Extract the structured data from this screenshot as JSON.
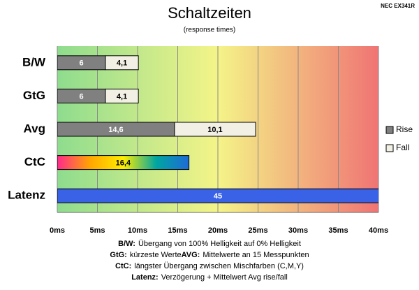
{
  "chart_data": {
    "type": "bar",
    "orientation": "horizontal",
    "stacked": true,
    "title": "Schaltzeiten",
    "subtitle": "(response times)",
    "corner_label": "NEC EX341R",
    "categories": [
      "B/W",
      "GtG",
      "Avg",
      "CtC",
      "Latenz"
    ],
    "series": [
      {
        "name": "Rise",
        "color": "#808080",
        "label_color": "#ffffff",
        "values": [
          6,
          6,
          14.6,
          null,
          null
        ],
        "value_labels": [
          "6",
          "6",
          "14,6",
          null,
          null
        ]
      },
      {
        "name": "Fall",
        "color": "#f2f0e4",
        "label_color": "#000000",
        "values": [
          4.1,
          4.1,
          10.1,
          null,
          null
        ],
        "value_labels": [
          "4,1",
          "4,1",
          "10,1",
          null,
          null
        ]
      }
    ],
    "extra_series": [
      {
        "gradient": [
          "#ff2a8c",
          "#ffa500",
          "#ffee00",
          "#00a6a0",
          "#1e6ad8"
        ],
        "label_color": "#000000",
        "values": [
          null,
          null,
          null,
          16.4,
          null
        ],
        "value_labels": [
          null,
          null,
          null,
          "16,4",
          null
        ]
      },
      {
        "color": "#3a62e6",
        "label_color": "#ffffff",
        "values": [
          null,
          null,
          null,
          null,
          45
        ]
      }
    ],
    "xlim": [
      0,
      40
    ],
    "xticks": [
      {
        "value": 0,
        "label": "0ms"
      },
      {
        "value": 5,
        "label": "5ms"
      },
      {
        "value": 10,
        "label": "10ms"
      },
      {
        "value": 15,
        "label": "15ms"
      },
      {
        "value": 20,
        "label": "20ms"
      },
      {
        "value": 25,
        "label": "25ms"
      },
      {
        "value": 30,
        "label": "30ms"
      },
      {
        "value": 35,
        "label": "35ms"
      },
      {
        "value": 40,
        "label": "40ms"
      }
    ],
    "grid": true,
    "background_gradient": [
      "#8edc8e",
      "#f4f488",
      "#f07474"
    ],
    "legend": "right",
    "notes": [
      [
        {
          "term": "B/W:",
          "text": "Übergang von 100% Helligkeit auf 0% Helligkeit"
        }
      ],
      [
        {
          "term": "GtG:",
          "text": "kürzeste Werte"
        },
        {
          "term": "AVG:",
          "text": "Mittelwerte an 15 Messpunkten"
        }
      ],
      [
        {
          "term": "CtC:",
          "text": "längster Übergang zwischen Mischfarben (C,M,Y)"
        }
      ],
      [
        {
          "term": "Latenz:",
          "text": "Verzögerung + Mittelwert Avg rise/fall"
        }
      ]
    ]
  }
}
